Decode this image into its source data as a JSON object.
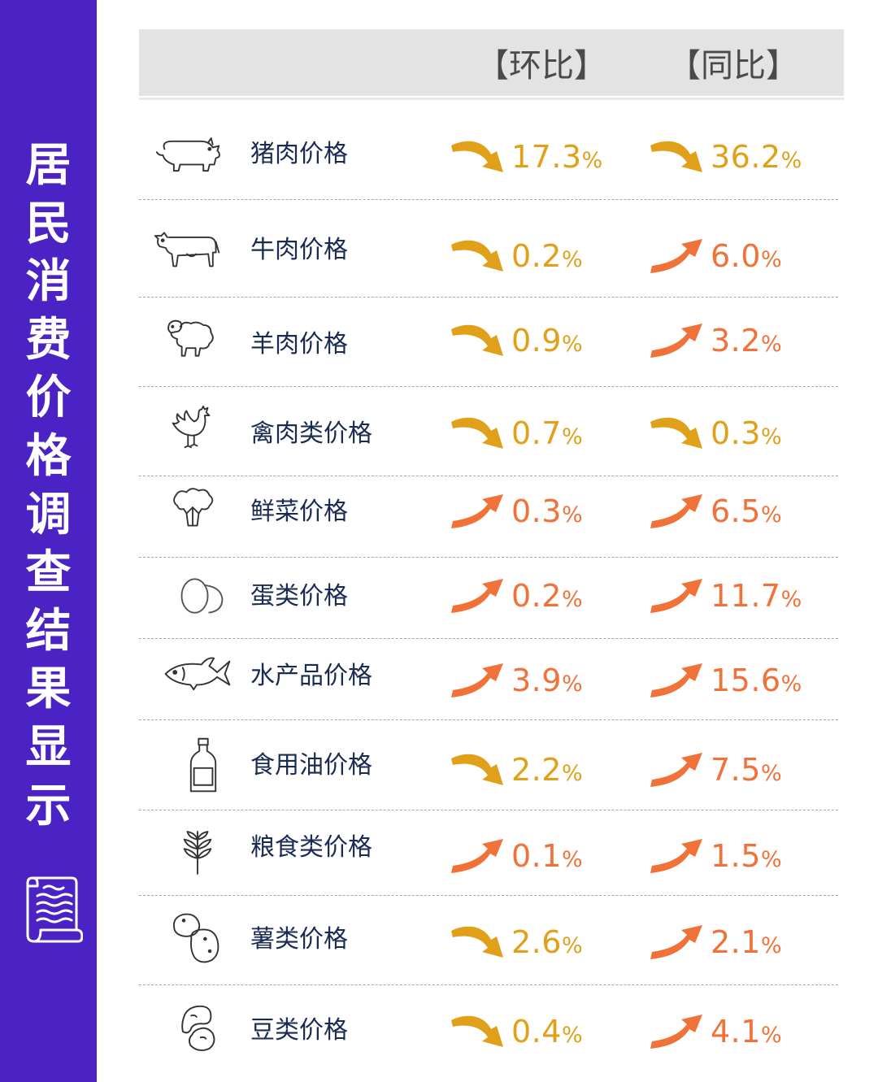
{
  "sidebar": {
    "title_chars": [
      "居",
      "民",
      "消",
      "费",
      "价",
      "格",
      "调",
      "查",
      "结",
      "果",
      "显",
      "示"
    ]
  },
  "header": {
    "mom_label": "【环比】",
    "yoy_label": "【同比】"
  },
  "colors": {
    "sidebar": "#4b23c4",
    "down": "#e0a019",
    "up": "#f07238",
    "label": "#1a2a52"
  },
  "rows": [
    {
      "label": "猪肉价格",
      "icon": "pig-icon",
      "mom": {
        "dir": "down",
        "value": "17.3",
        "unit": "%"
      },
      "yoy": {
        "dir": "down",
        "value": "36.2",
        "unit": "%"
      }
    },
    {
      "label": "牛肉价格",
      "icon": "cow-icon",
      "mom": {
        "dir": "down",
        "value": "0.2",
        "unit": "%"
      },
      "yoy": {
        "dir": "up",
        "value": "6.0",
        "unit": "%"
      }
    },
    {
      "label": "羊肉价格",
      "icon": "sheep-icon",
      "mom": {
        "dir": "down",
        "value": "0.9",
        "unit": "%"
      },
      "yoy": {
        "dir": "up",
        "value": "3.2",
        "unit": "%"
      }
    },
    {
      "label": "禽肉类价格",
      "icon": "rooster-icon",
      "mom": {
        "dir": "down",
        "value": "0.7",
        "unit": "%"
      },
      "yoy": {
        "dir": "down",
        "value": "0.3",
        "unit": "%"
      }
    },
    {
      "label": "鲜菜价格",
      "icon": "broccoli-icon",
      "mom": {
        "dir": "up",
        "value": "0.3",
        "unit": "%"
      },
      "yoy": {
        "dir": "up",
        "value": "6.5",
        "unit": "%"
      }
    },
    {
      "label": "蛋类价格",
      "icon": "eggs-icon",
      "mom": {
        "dir": "up",
        "value": "0.2",
        "unit": "%"
      },
      "yoy": {
        "dir": "up",
        "value": "11.7",
        "unit": "%"
      }
    },
    {
      "label": "水产品价格",
      "icon": "fish-icon",
      "mom": {
        "dir": "up",
        "value": "3.9",
        "unit": "%"
      },
      "yoy": {
        "dir": "up",
        "value": "15.6",
        "unit": "%"
      }
    },
    {
      "label": "食用油价格",
      "icon": "oil-bottle-icon",
      "mom": {
        "dir": "down",
        "value": "2.2",
        "unit": "%"
      },
      "yoy": {
        "dir": "up",
        "value": "7.5",
        "unit": "%"
      }
    },
    {
      "label": "粮食类价格",
      "icon": "wheat-icon",
      "mom": {
        "dir": "up",
        "value": "0.1",
        "unit": "%"
      },
      "yoy": {
        "dir": "up",
        "value": "1.5",
        "unit": "%"
      }
    },
    {
      "label": "薯类价格",
      "icon": "potato-icon",
      "mom": {
        "dir": "down",
        "value": "2.6",
        "unit": "%"
      },
      "yoy": {
        "dir": "up",
        "value": "2.1",
        "unit": "%"
      }
    },
    {
      "label": "豆类价格",
      "icon": "bean-icon",
      "mom": {
        "dir": "down",
        "value": "0.4",
        "unit": "%"
      },
      "yoy": {
        "dir": "up",
        "value": "4.1",
        "unit": "%"
      }
    }
  ]
}
